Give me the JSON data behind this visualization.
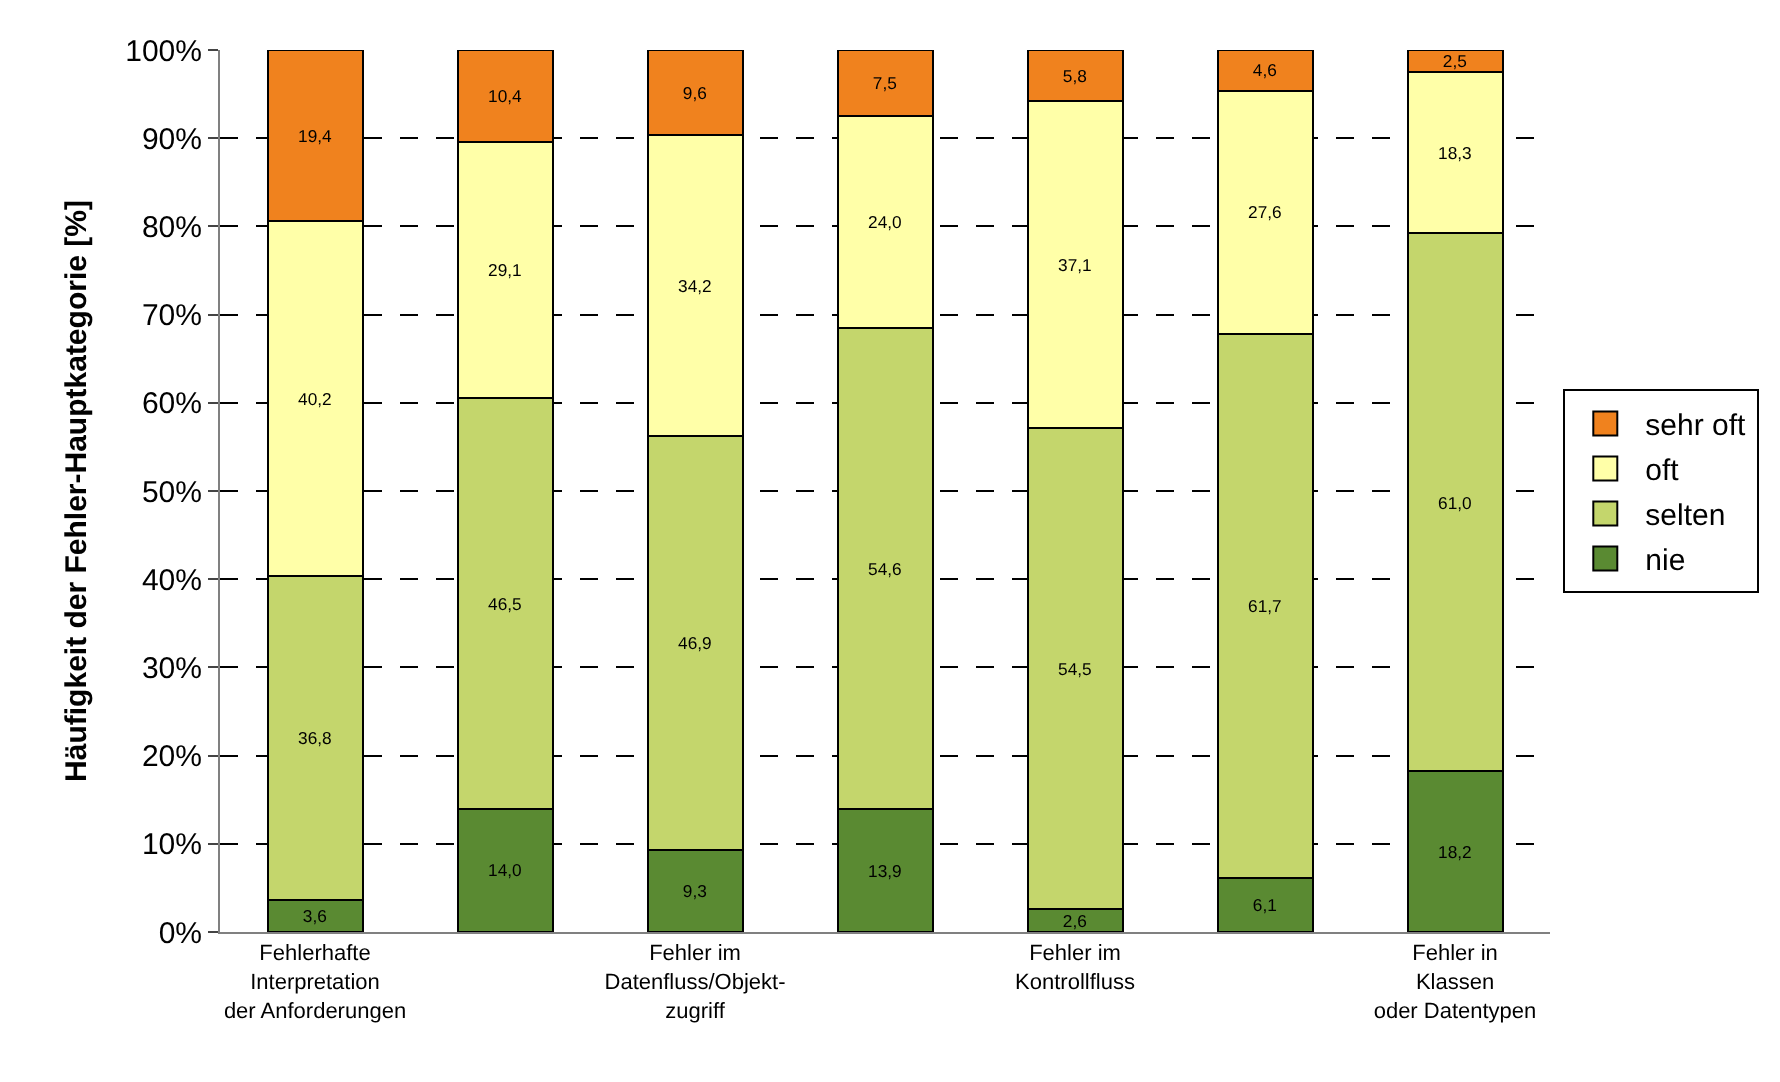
{
  "chart_data": {
    "type": "bar",
    "stacked": true,
    "ylabel": "Häufigkeit der Fehler-Hauptkategorie [%]",
    "categories": [
      "Fehlerhafte\nInterpretation\nder Anforderungen",
      null,
      "Fehler im\nDatenfluss/Objekt-\nzugriff",
      null,
      "Fehler im\nKontrollfluss",
      null,
      "Fehler in\nKlassen\noder Datentypen"
    ],
    "series": [
      {
        "name": "nie",
        "color": "#5a8a32",
        "values": [
          3.6,
          14.0,
          9.3,
          13.9,
          2.6,
          6.1,
          18.2
        ],
        "value_labels": [
          "3,6",
          "14,0",
          "9,3",
          "13,9",
          "2,6",
          "6,1",
          "18,2"
        ]
      },
      {
        "name": "selten",
        "color": "#c4d66c",
        "values": [
          36.8,
          46.5,
          46.9,
          54.6,
          54.5,
          61.7,
          61.0
        ],
        "value_labels": [
          "36,8",
          "46,5",
          "46,9",
          "54,6",
          "54,5",
          "61,7",
          "61,0"
        ]
      },
      {
        "name": "oft",
        "color": "#ffffa8",
        "values": [
          40.2,
          29.1,
          34.2,
          24.0,
          37.1,
          27.6,
          18.3
        ],
        "value_labels": [
          "40,2",
          "29,1",
          "34,2",
          "24,0",
          "37,1",
          "27,6",
          "18,3"
        ]
      },
      {
        "name": "sehr oft",
        "color": "#f0821e",
        "values": [
          19.4,
          10.4,
          9.6,
          7.5,
          5.8,
          4.6,
          2.5
        ],
        "value_labels": [
          "19,4",
          "10,4",
          "9,6",
          "7,5",
          "5,8",
          "4,6",
          "2,5"
        ]
      }
    ],
    "ylim": [
      0,
      100
    ],
    "yticks": [
      {
        "value": 0,
        "label": "0%"
      },
      {
        "value": 10,
        "label": "10%"
      },
      {
        "value": 20,
        "label": "20%"
      },
      {
        "value": 30,
        "label": "30%"
      },
      {
        "value": 40,
        "label": "40%"
      },
      {
        "value": 50,
        "label": "50%"
      },
      {
        "value": 60,
        "label": "60%"
      },
      {
        "value": 70,
        "label": "70%"
      },
      {
        "value": 80,
        "label": "80%"
      },
      {
        "value": 90,
        "label": "90%"
      },
      {
        "value": 100,
        "label": "100%"
      }
    ],
    "grid": "y",
    "legend": "right"
  }
}
